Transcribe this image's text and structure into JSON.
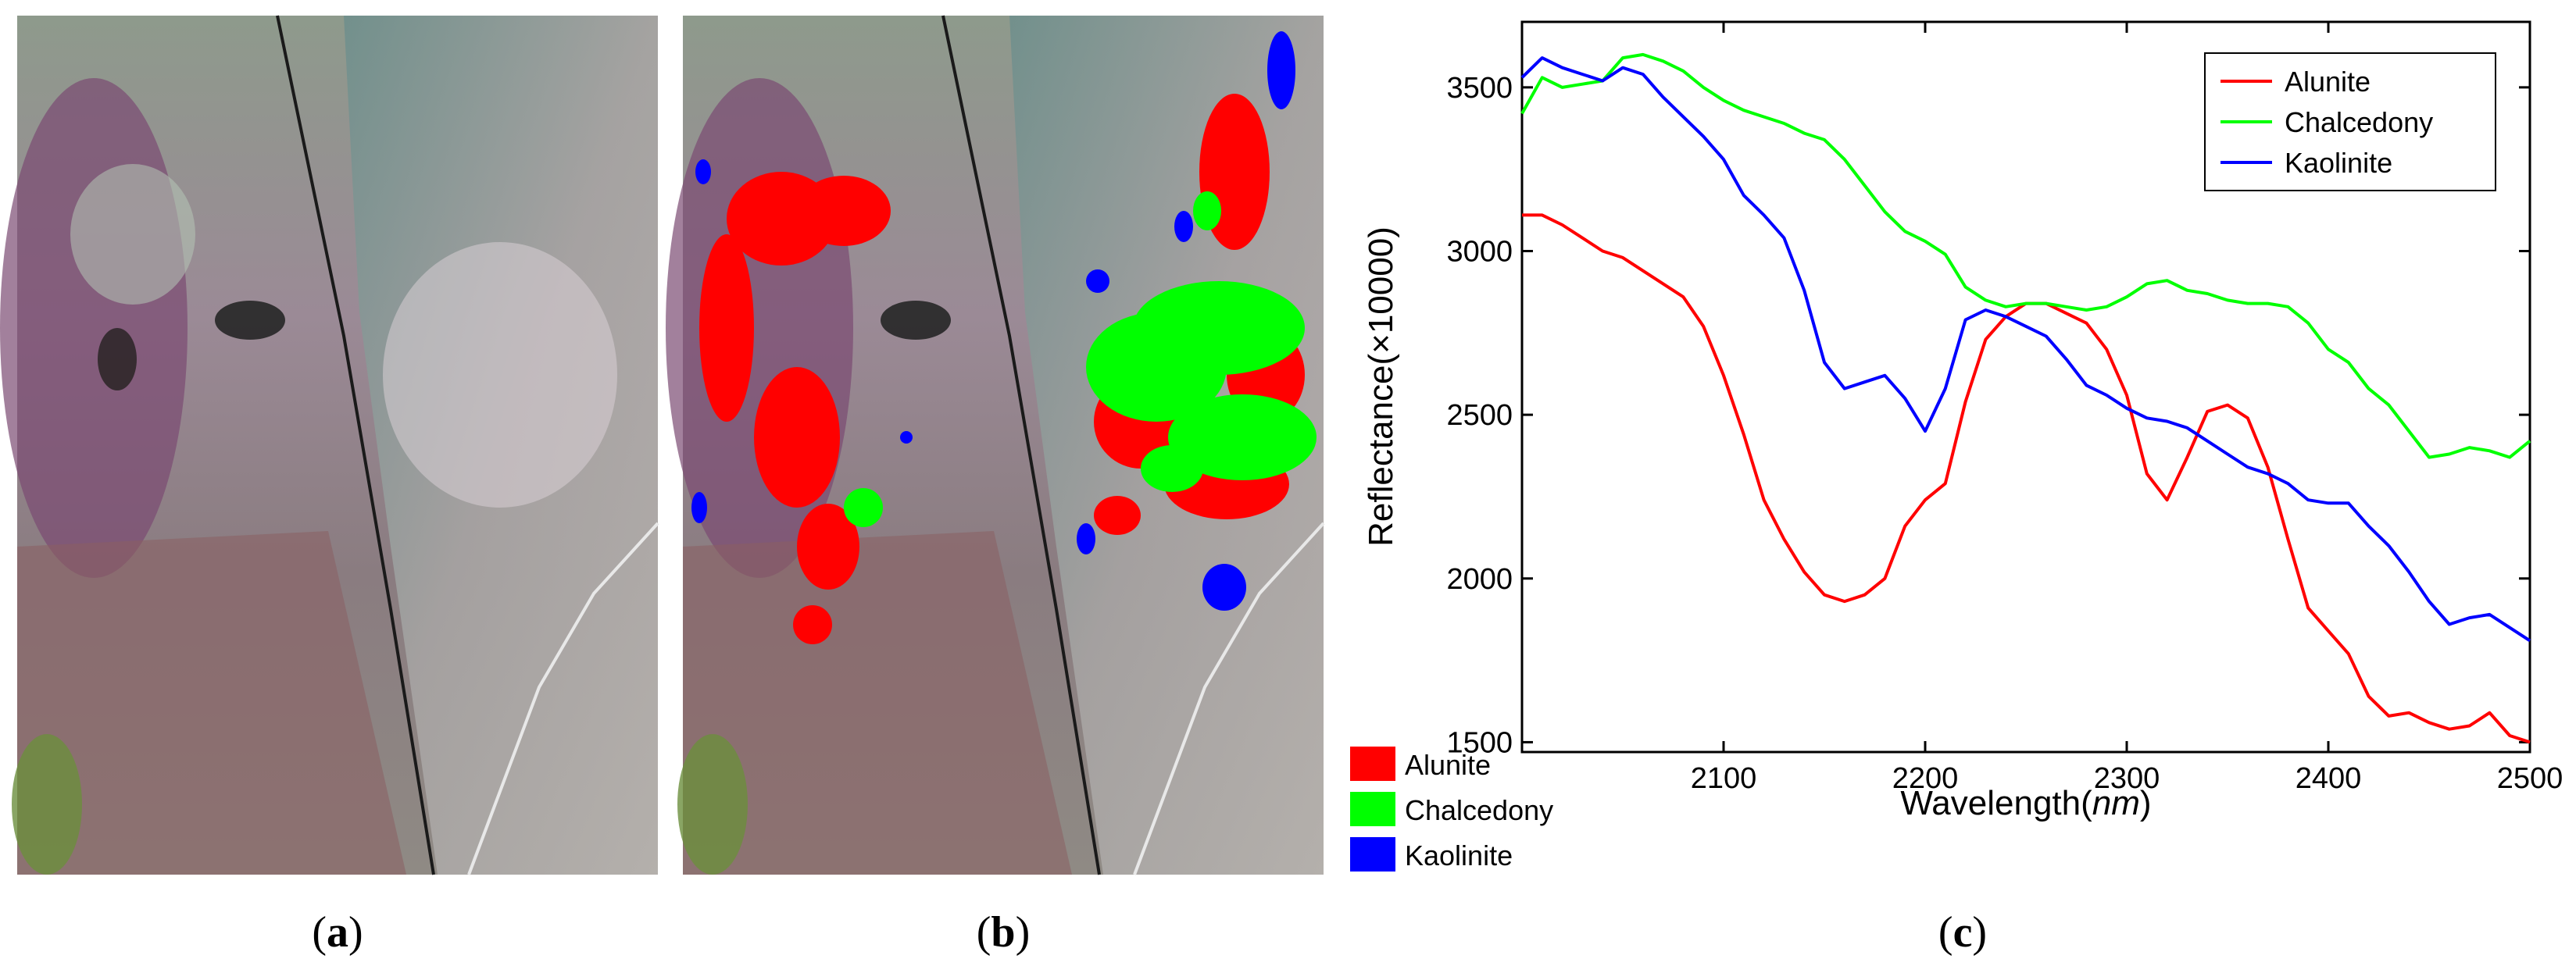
{
  "figure": {
    "panel_labels": [
      {
        "open": "(",
        "letter": "a",
        "close": ")"
      },
      {
        "open": "(",
        "letter": "b",
        "close": ")"
      },
      {
        "open": "(",
        "letter": "c",
        "close": ")"
      }
    ],
    "map_legend": [
      {
        "label": "Alunite",
        "color": "#ff0000"
      },
      {
        "label": "Chalcedony",
        "color": "#00ff00"
      },
      {
        "label": "Kaolinite",
        "color": "#0000ff"
      }
    ],
    "colors": {
      "alunite": "#ff0000",
      "chalcedony": "#00ff00",
      "kaolinite": "#0000ff",
      "image_base": "#7f7c78"
    }
  },
  "chart_data": {
    "type": "line",
    "title": "",
    "xlabel_main": "Wavelength",
    "xlabel_unit": "nm",
    "ylabel": "Reflectance(×10000)",
    "xlim": [
      2000,
      2500
    ],
    "ylim": [
      1470,
      3700
    ],
    "xticks": [
      2100,
      2200,
      2300,
      2400,
      2500
    ],
    "yticks": [
      1500,
      2000,
      2500,
      3000,
      3500
    ],
    "legend_position": "top-right",
    "grid": false,
    "series": [
      {
        "name": "Alunite",
        "color": "#ff0000",
        "x": [
          2000,
          2010,
          2020,
          2030,
          2040,
          2050,
          2060,
          2070,
          2080,
          2090,
          2100,
          2110,
          2120,
          2130,
          2140,
          2150,
          2160,
          2170,
          2180,
          2190,
          2200,
          2210,
          2220,
          2230,
          2240,
          2250,
          2260,
          2270,
          2280,
          2290,
          2300,
          2310,
          2320,
          2330,
          2340,
          2350,
          2360,
          2370,
          2380,
          2390,
          2400,
          2410,
          2420,
          2430,
          2440,
          2450,
          2460,
          2470,
          2480,
          2490,
          2500
        ],
        "values": [
          3110,
          3110,
          3080,
          3040,
          3000,
          2980,
          2940,
          2900,
          2860,
          2770,
          2620,
          2440,
          2240,
          2120,
          2020,
          1950,
          1930,
          1950,
          2000,
          2160,
          2240,
          2290,
          2540,
          2730,
          2800,
          2840,
          2840,
          2810,
          2780,
          2700,
          2560,
          2320,
          2240,
          2370,
          2510,
          2530,
          2490,
          2340,
          2120,
          1910,
          1840,
          1770,
          1640,
          1580,
          1590,
          1560,
          1540,
          1550,
          1590,
          1520,
          1500
        ]
      },
      {
        "name": "Chalcedony",
        "color": "#00ff00",
        "x": [
          2000,
          2010,
          2020,
          2030,
          2040,
          2050,
          2060,
          2070,
          2080,
          2090,
          2100,
          2110,
          2120,
          2130,
          2140,
          2150,
          2160,
          2170,
          2180,
          2190,
          2200,
          2210,
          2220,
          2230,
          2240,
          2250,
          2260,
          2270,
          2280,
          2290,
          2300,
          2310,
          2320,
          2330,
          2340,
          2350,
          2360,
          2370,
          2380,
          2390,
          2400,
          2410,
          2420,
          2430,
          2440,
          2450,
          2460,
          2470,
          2480,
          2490,
          2500
        ],
        "values": [
          3420,
          3530,
          3500,
          3510,
          3520,
          3590,
          3600,
          3580,
          3550,
          3500,
          3460,
          3430,
          3410,
          3390,
          3360,
          3340,
          3280,
          3200,
          3120,
          3060,
          3030,
          2990,
          2890,
          2850,
          2830,
          2840,
          2840,
          2830,
          2820,
          2830,
          2860,
          2900,
          2910,
          2880,
          2870,
          2850,
          2840,
          2840,
          2830,
          2780,
          2700,
          2660,
          2580,
          2530,
          2450,
          2370,
          2380,
          2400,
          2390,
          2370,
          2420
        ]
      },
      {
        "name": "Kaolinite",
        "color": "#0000ff",
        "x": [
          2000,
          2010,
          2020,
          2030,
          2040,
          2050,
          2060,
          2070,
          2080,
          2090,
          2100,
          2110,
          2120,
          2130,
          2140,
          2150,
          2160,
          2170,
          2180,
          2190,
          2200,
          2210,
          2220,
          2230,
          2240,
          2250,
          2260,
          2270,
          2280,
          2290,
          2300,
          2310,
          2320,
          2330,
          2340,
          2350,
          2360,
          2370,
          2380,
          2390,
          2400,
          2410,
          2420,
          2430,
          2440,
          2450,
          2460,
          2470,
          2480,
          2490,
          2500
        ],
        "values": [
          3530,
          3590,
          3560,
          3540,
          3520,
          3560,
          3540,
          3470,
          3410,
          3350,
          3280,
          3170,
          3110,
          3040,
          2880,
          2660,
          2580,
          2600,
          2620,
          2550,
          2450,
          2580,
          2790,
          2820,
          2800,
          2770,
          2740,
          2670,
          2590,
          2560,
          2520,
          2490,
          2480,
          2460,
          2420,
          2380,
          2340,
          2320,
          2290,
          2240,
          2230,
          2230,
          2160,
          2100,
          2020,
          1930,
          1860,
          1880,
          1890,
          1850,
          1810
        ]
      }
    ]
  }
}
